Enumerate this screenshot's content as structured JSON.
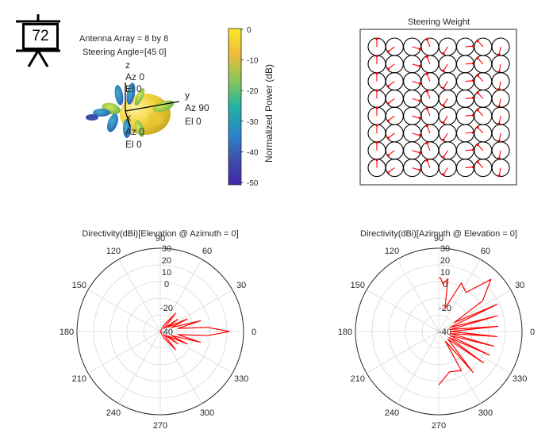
{
  "badge": {
    "number": "72",
    "icon": "presentation-board-icon"
  },
  "pattern3d": {
    "line1": "Antenna Array = 8 by 8",
    "line2": "Steering Angle=[45 0]",
    "axis_labels": {
      "z": [
        "z",
        "Az 0",
        "El 0"
      ],
      "y": [
        "y",
        "Az 90",
        "El 0"
      ],
      "x": [
        "x",
        "Az 0",
        "El 0"
      ]
    }
  },
  "colorbar": {
    "label": "Normalized Power (dB)",
    "ticks": [
      "0",
      "-10",
      "-20",
      "-30",
      "-40",
      "-50"
    ],
    "colors": [
      "#fde725",
      "#f1bd3a",
      "#83c65a",
      "#21b3a4",
      "#2c83c9",
      "#3e4ca9",
      "#3e26a8"
    ]
  },
  "chart_data": [
    {
      "type": "scatter",
      "title": "Steering Weight",
      "grid_size": [
        8,
        8
      ],
      "element_marker": "circle",
      "phasor_color": "#ff0000",
      "xlabel": "",
      "ylabel": ""
    },
    {
      "type": "line",
      "subtype": "polar",
      "title": "Directivity(dBi)[Elevation @ Azimuth = 0]",
      "angle_ticks": [
        "0",
        "30",
        "60",
        "90",
        "120",
        "150",
        "180",
        "210",
        "240",
        "270",
        "300",
        "330"
      ],
      "radial_ticks": [
        "30",
        "20",
        "10",
        "0",
        "-20",
        "-40"
      ],
      "rlim": [
        -40,
        30
      ],
      "series": [
        {
          "color": "#ff0000",
          "theta_deg": [
            -90,
            -60,
            -50,
            -40,
            -35,
            -30,
            -25,
            -20,
            -15,
            -10,
            -5,
            0,
            5,
            10,
            15,
            20,
            25,
            30,
            35,
            40,
            50,
            60,
            90
          ],
          "r_db": [
            -40,
            -34,
            -20,
            -36,
            -22,
            -33,
            -15,
            -30,
            -5,
            -25,
            0,
            18,
            0,
            -25,
            -5,
            -30,
            -15,
            -33,
            -22,
            -36,
            -20,
            -34,
            -40
          ]
        }
      ]
    },
    {
      "type": "line",
      "subtype": "polar",
      "title": "Directivity(dBi)[Azimuth @ Elevation = 0]",
      "angle_ticks": [
        "0",
        "30",
        "60",
        "90",
        "120",
        "150",
        "180",
        "210",
        "240",
        "270",
        "300",
        "330"
      ],
      "radial_ticks": [
        "30",
        "20",
        "10",
        "0",
        "-20",
        "-40"
      ],
      "rlim": [
        -40,
        30
      ],
      "series": [
        {
          "color": "#ff0000",
          "theta_deg": [
            -90,
            -75,
            -60,
            -55,
            -50,
            -40,
            -35,
            -30,
            -25,
            -20,
            -15,
            -10,
            -5,
            0,
            5,
            10,
            15,
            20,
            25,
            30,
            35,
            45,
            55,
            65,
            75,
            80,
            85,
            88,
            90
          ],
          "r_db": [
            5,
            -5,
            -2,
            -30,
            5,
            -30,
            6,
            -30,
            7,
            -30,
            8,
            -30,
            9,
            -30,
            10,
            -30,
            11,
            -30,
            14,
            -25,
            5,
            22,
            0,
            5,
            -20,
            5,
            0,
            5,
            5
          ]
        }
      ]
    }
  ]
}
